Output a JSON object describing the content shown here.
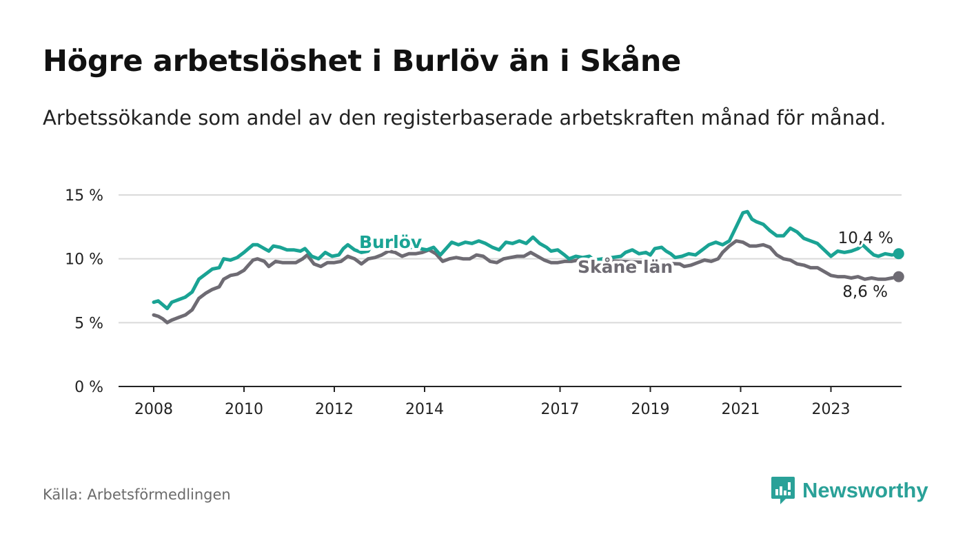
{
  "title": "Högre arbetslöshet i Burlöv än i Skåne",
  "subtitle": "Arbetssökande som andel av den registerbaserade arbetskraften månad för månad.",
  "source": "Källa: Arbetsförmedlingen",
  "brand": "Newsworthy",
  "colors": {
    "burlov": "#1aa394",
    "skane": "#6e6b73",
    "grid": "#d9d9d9",
    "axis": "#222222",
    "brand": "#2aa198"
  },
  "chart_data": {
    "type": "line",
    "ylim": [
      0,
      15
    ],
    "yticks": [
      0,
      5,
      10,
      15
    ],
    "ytick_labels": [
      "0 %",
      "5 %",
      "10 %",
      "15 %"
    ],
    "xlim": [
      2008.0,
      2024.0
    ],
    "xticks": [
      2008,
      2010,
      2012,
      2014,
      2017,
      2019,
      2021,
      2023
    ],
    "xtick_labels": [
      "2008",
      "2010",
      "2012",
      "2014",
      "2017",
      "2019",
      "2021",
      "2023"
    ],
    "series": [
      {
        "name": "Burlöv",
        "color": "#1aa394",
        "end_label": "10,4 %",
        "points": [
          [
            2008.0,
            6.6
          ],
          [
            2008.1,
            6.7
          ],
          [
            2008.2,
            6.4
          ],
          [
            2008.3,
            6.1
          ],
          [
            2008.4,
            6.6
          ],
          [
            2008.55,
            6.8
          ],
          [
            2008.7,
            7.0
          ],
          [
            2008.85,
            7.4
          ],
          [
            2009.0,
            8.4
          ],
          [
            2009.15,
            8.8
          ],
          [
            2009.3,
            9.2
          ],
          [
            2009.45,
            9.3
          ],
          [
            2009.55,
            10.0
          ],
          [
            2009.7,
            9.9
          ],
          [
            2009.85,
            10.1
          ],
          [
            2010.0,
            10.5
          ],
          [
            2010.1,
            10.8
          ],
          [
            2010.2,
            11.1
          ],
          [
            2010.3,
            11.1
          ],
          [
            2010.4,
            10.9
          ],
          [
            2010.55,
            10.6
          ],
          [
            2010.65,
            11.0
          ],
          [
            2010.8,
            10.9
          ],
          [
            2010.95,
            10.7
          ],
          [
            2011.1,
            10.7
          ],
          [
            2011.25,
            10.6
          ],
          [
            2011.35,
            10.8
          ],
          [
            2011.5,
            10.2
          ],
          [
            2011.65,
            10.0
          ],
          [
            2011.8,
            10.5
          ],
          [
            2011.95,
            10.2
          ],
          [
            2012.1,
            10.3
          ],
          [
            2012.2,
            10.8
          ],
          [
            2012.3,
            11.1
          ],
          [
            2012.45,
            10.7
          ],
          [
            2012.6,
            10.5
          ],
          [
            2012.75,
            10.6
          ],
          [
            2012.8,
            10.9
          ],
          [
            2013.8,
            10.9
          ],
          [
            2013.9,
            10.8
          ],
          [
            2014.05,
            10.7
          ],
          [
            2014.2,
            10.9
          ],
          [
            2014.35,
            10.3
          ],
          [
            2014.5,
            10.9
          ],
          [
            2014.6,
            11.3
          ],
          [
            2014.75,
            11.1
          ],
          [
            2014.9,
            11.3
          ],
          [
            2015.05,
            11.2
          ],
          [
            2015.2,
            11.4
          ],
          [
            2015.35,
            11.2
          ],
          [
            2015.5,
            10.9
          ],
          [
            2015.65,
            10.7
          ],
          [
            2015.8,
            11.3
          ],
          [
            2015.95,
            11.2
          ],
          [
            2016.1,
            11.4
          ],
          [
            2016.25,
            11.2
          ],
          [
            2016.4,
            11.7
          ],
          [
            2016.55,
            11.2
          ],
          [
            2016.7,
            10.9
          ],
          [
            2016.8,
            10.6
          ],
          [
            2016.95,
            10.7
          ],
          [
            2017.1,
            10.3
          ],
          [
            2017.2,
            10.0
          ],
          [
            2017.35,
            10.2
          ],
          [
            2017.5,
            10.1
          ],
          [
            2017.65,
            10.2
          ],
          [
            2017.75,
            9.9
          ],
          [
            2018.35,
            10.2
          ],
          [
            2018.45,
            10.5
          ],
          [
            2018.6,
            10.7
          ],
          [
            2018.75,
            10.4
          ],
          [
            2018.9,
            10.5
          ],
          [
            2019.0,
            10.3
          ],
          [
            2019.1,
            10.8
          ],
          [
            2019.25,
            10.9
          ],
          [
            2019.35,
            10.6
          ],
          [
            2019.45,
            10.4
          ],
          [
            2019.55,
            10.1
          ],
          [
            2019.7,
            10.2
          ],
          [
            2019.85,
            10.4
          ],
          [
            2020.0,
            10.3
          ],
          [
            2020.15,
            10.7
          ],
          [
            2020.3,
            11.1
          ],
          [
            2020.45,
            11.3
          ],
          [
            2020.6,
            11.1
          ],
          [
            2020.75,
            11.4
          ],
          [
            2020.9,
            12.5
          ],
          [
            2021.05,
            13.6
          ],
          [
            2021.15,
            13.7
          ],
          [
            2021.25,
            13.1
          ],
          [
            2021.35,
            12.9
          ],
          [
            2021.5,
            12.7
          ],
          [
            2021.65,
            12.2
          ],
          [
            2021.8,
            11.8
          ],
          [
            2021.95,
            11.8
          ],
          [
            2022.1,
            12.4
          ],
          [
            2022.25,
            12.1
          ],
          [
            2022.4,
            11.6
          ],
          [
            2022.55,
            11.4
          ],
          [
            2022.7,
            11.2
          ],
          [
            2022.85,
            10.7
          ],
          [
            2023.0,
            10.2
          ],
          [
            2023.15,
            10.6
          ],
          [
            2023.3,
            10.5
          ],
          [
            2023.45,
            10.6
          ],
          [
            2023.6,
            10.8
          ],
          [
            2023.7,
            11.1
          ],
          [
            2023.85,
            10.6
          ],
          [
            2023.95,
            10.3
          ],
          [
            2024.05,
            10.2
          ],
          [
            2024.2,
            10.4
          ],
          [
            2024.35,
            10.3
          ],
          [
            2024.5,
            10.4
          ]
        ]
      },
      {
        "name": "Skåne län",
        "color": "#6e6b73",
        "end_label": "8,6 %",
        "points": [
          [
            2008.0,
            5.6
          ],
          [
            2008.1,
            5.5
          ],
          [
            2008.2,
            5.3
          ],
          [
            2008.3,
            5.0
          ],
          [
            2008.4,
            5.2
          ],
          [
            2008.55,
            5.4
          ],
          [
            2008.7,
            5.6
          ],
          [
            2008.85,
            6.0
          ],
          [
            2009.0,
            6.9
          ],
          [
            2009.15,
            7.3
          ],
          [
            2009.3,
            7.6
          ],
          [
            2009.45,
            7.8
          ],
          [
            2009.55,
            8.4
          ],
          [
            2009.7,
            8.7
          ],
          [
            2009.85,
            8.8
          ],
          [
            2010.0,
            9.1
          ],
          [
            2010.1,
            9.5
          ],
          [
            2010.2,
            9.9
          ],
          [
            2010.3,
            10.0
          ],
          [
            2010.45,
            9.8
          ],
          [
            2010.55,
            9.4
          ],
          [
            2010.7,
            9.8
          ],
          [
            2010.85,
            9.7
          ],
          [
            2011.0,
            9.7
          ],
          [
            2011.15,
            9.7
          ],
          [
            2011.3,
            10.0
          ],
          [
            2011.4,
            10.3
          ],
          [
            2011.55,
            9.6
          ],
          [
            2011.7,
            9.4
          ],
          [
            2011.85,
            9.7
          ],
          [
            2012.0,
            9.7
          ],
          [
            2012.15,
            9.8
          ],
          [
            2012.3,
            10.2
          ],
          [
            2012.45,
            10.0
          ],
          [
            2012.6,
            9.6
          ],
          [
            2012.75,
            10.0
          ],
          [
            2012.9,
            10.1
          ],
          [
            2013.05,
            10.3
          ],
          [
            2013.2,
            10.6
          ],
          [
            2013.35,
            10.5
          ],
          [
            2013.5,
            10.2
          ],
          [
            2013.65,
            10.4
          ],
          [
            2013.8,
            10.4
          ],
          [
            2013.95,
            10.5
          ],
          [
            2014.1,
            10.7
          ],
          [
            2014.25,
            10.4
          ],
          [
            2014.4,
            9.8
          ],
          [
            2014.55,
            10.0
          ],
          [
            2014.7,
            10.1
          ],
          [
            2014.85,
            10.0
          ],
          [
            2015.0,
            10.0
          ],
          [
            2015.15,
            10.3
          ],
          [
            2015.3,
            10.2
          ],
          [
            2015.45,
            9.8
          ],
          [
            2015.6,
            9.7
          ],
          [
            2015.75,
            10.0
          ],
          [
            2015.9,
            10.1
          ],
          [
            2016.05,
            10.2
          ],
          [
            2016.2,
            10.2
          ],
          [
            2016.35,
            10.5
          ],
          [
            2016.5,
            10.2
          ],
          [
            2016.65,
            9.9
          ],
          [
            2016.8,
            9.7
          ],
          [
            2016.95,
            9.7
          ],
          [
            2017.1,
            9.8
          ],
          [
            2017.25,
            9.8
          ],
          [
            2017.4,
            9.9
          ],
          [
            2017.55,
            10.1
          ],
          [
            2017.7,
            9.9
          ],
          [
            2019.65,
            9.6
          ],
          [
            2019.75,
            9.4
          ],
          [
            2019.9,
            9.5
          ],
          [
            2020.05,
            9.7
          ],
          [
            2020.2,
            9.9
          ],
          [
            2020.35,
            9.8
          ],
          [
            2020.5,
            10.0
          ],
          [
            2020.6,
            10.5
          ],
          [
            2020.75,
            11.0
          ],
          [
            2020.9,
            11.4
          ],
          [
            2021.05,
            11.3
          ],
          [
            2021.2,
            11.0
          ],
          [
            2021.35,
            11.0
          ],
          [
            2021.5,
            11.1
          ],
          [
            2021.65,
            10.9
          ],
          [
            2021.8,
            10.3
          ],
          [
            2021.95,
            10.0
          ],
          [
            2022.1,
            9.9
          ],
          [
            2022.25,
            9.6
          ],
          [
            2022.4,
            9.5
          ],
          [
            2022.55,
            9.3
          ],
          [
            2022.7,
            9.3
          ],
          [
            2022.85,
            9.0
          ],
          [
            2023.0,
            8.7
          ],
          [
            2023.15,
            8.6
          ],
          [
            2023.3,
            8.6
          ],
          [
            2023.45,
            8.5
          ],
          [
            2023.6,
            8.6
          ],
          [
            2023.75,
            8.4
          ],
          [
            2023.9,
            8.5
          ],
          [
            2024.05,
            8.4
          ],
          [
            2024.2,
            8.4
          ],
          [
            2024.35,
            8.5
          ],
          [
            2024.5,
            8.6
          ]
        ]
      }
    ]
  }
}
